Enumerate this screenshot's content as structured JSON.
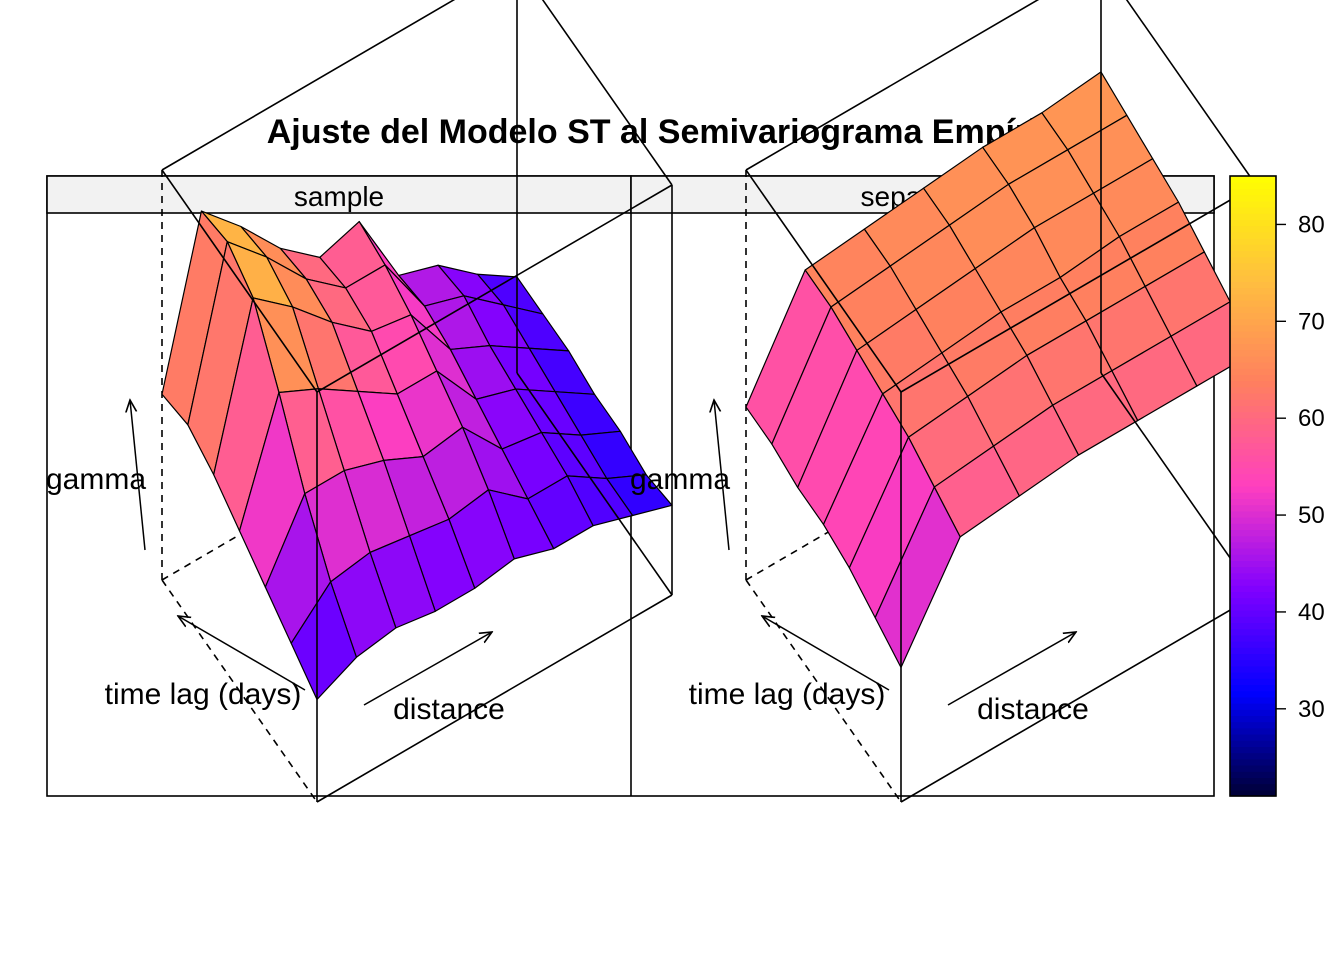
{
  "chart_data": {
    "type": "surface",
    "title": "Ajuste del Modelo ST al Semivariograma Empírico",
    "panels": [
      {
        "name": "sample",
        "labels": {
          "z": "gamma",
          "time": "time lag (days)",
          "distance": "distance"
        },
        "grid_note": "rows = time lags 0..6, columns = distance bins 0..9",
        "gamma": [
          [
            50,
            75,
            69,
            62,
            57,
            59,
            47,
            45,
            40,
            36
          ],
          [
            51,
            76,
            70,
            63,
            58,
            58,
            48,
            46,
            41,
            36
          ],
          [
            49,
            73,
            68,
            62,
            57,
            56,
            47,
            44,
            40,
            36
          ],
          [
            46,
            64,
            61,
            57,
            53,
            53,
            45,
            43,
            39,
            35
          ],
          [
            43,
            54,
            54,
            52,
            49,
            50,
            43,
            42,
            38,
            35
          ],
          [
            40,
            46,
            47,
            46,
            45,
            46,
            41,
            41,
            37,
            34
          ],
          [
            37,
            40,
            41,
            40,
            40,
            41,
            39,
            39,
            37,
            35
          ]
        ]
      },
      {
        "name": "separable",
        "labels": {
          "z": "gamma",
          "time": "time lag (days)",
          "distance": "distance"
        },
        "grid_note": "rows = time lags 0..6, columns = distance bins 0..6",
        "gamma": [
          [
            48,
            64,
            65,
            66,
            67,
            67,
            68
          ],
          [
            48,
            64,
            65,
            66,
            67,
            67,
            67
          ],
          [
            47,
            63,
            64,
            65,
            66,
            66,
            66
          ],
          [
            47,
            62,
            63,
            64,
            64,
            65,
            65
          ],
          [
            46,
            61,
            62,
            63,
            63,
            63,
            63
          ],
          [
            44,
            59,
            60,
            61,
            61,
            61,
            61
          ],
          [
            42,
            57,
            58,
            59,
            59,
            59,
            59
          ]
        ]
      }
    ],
    "colorkey": {
      "min": 21,
      "max": 85,
      "ticks": [
        30,
        40,
        50,
        60,
        70,
        80
      ],
      "palette": "plasma",
      "colors": [
        "#000033",
        "#0000FF",
        "#7F00FF",
        "#FF3FBF",
        "#FF7F5F",
        "#FFBF3F",
        "#FFFF00"
      ]
    },
    "zlim": [
      21,
      85
    ]
  }
}
